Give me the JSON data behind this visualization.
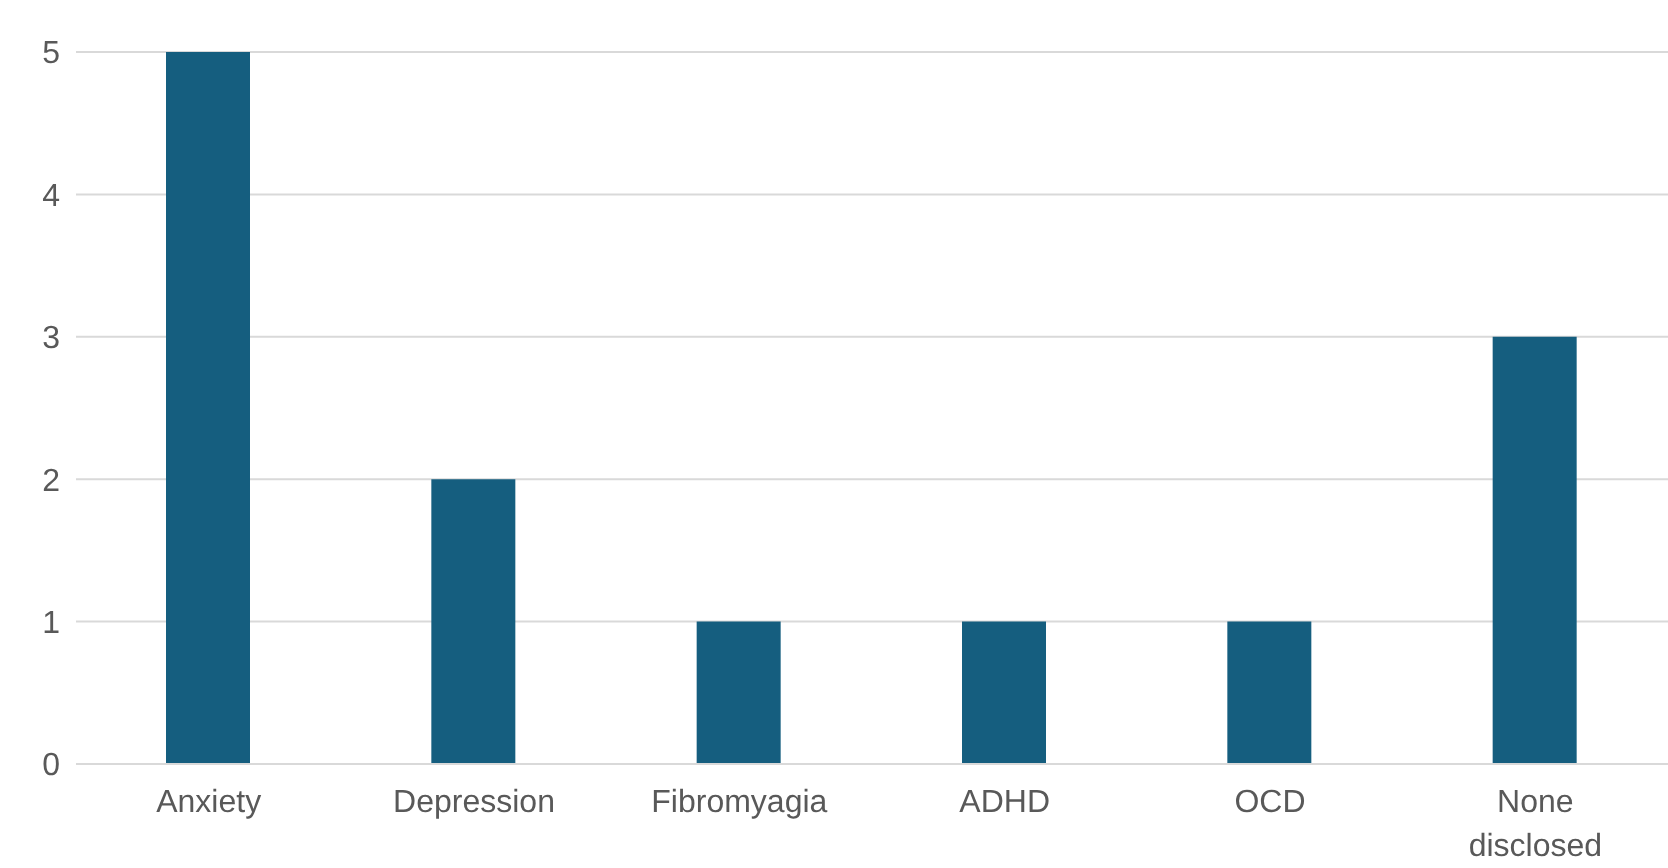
{
  "chart_data": {
    "type": "bar",
    "categories": [
      "Anxiety",
      "Depression",
      "Fibromyagia",
      "ADHD",
      "OCD",
      "None disclosed"
    ],
    "values": [
      5,
      2,
      1,
      1,
      1,
      3
    ],
    "color": "#155e7f",
    "ylim": [
      0,
      5
    ],
    "yticks": [
      0,
      1,
      2,
      3,
      4,
      5
    ],
    "grid": "y"
  }
}
